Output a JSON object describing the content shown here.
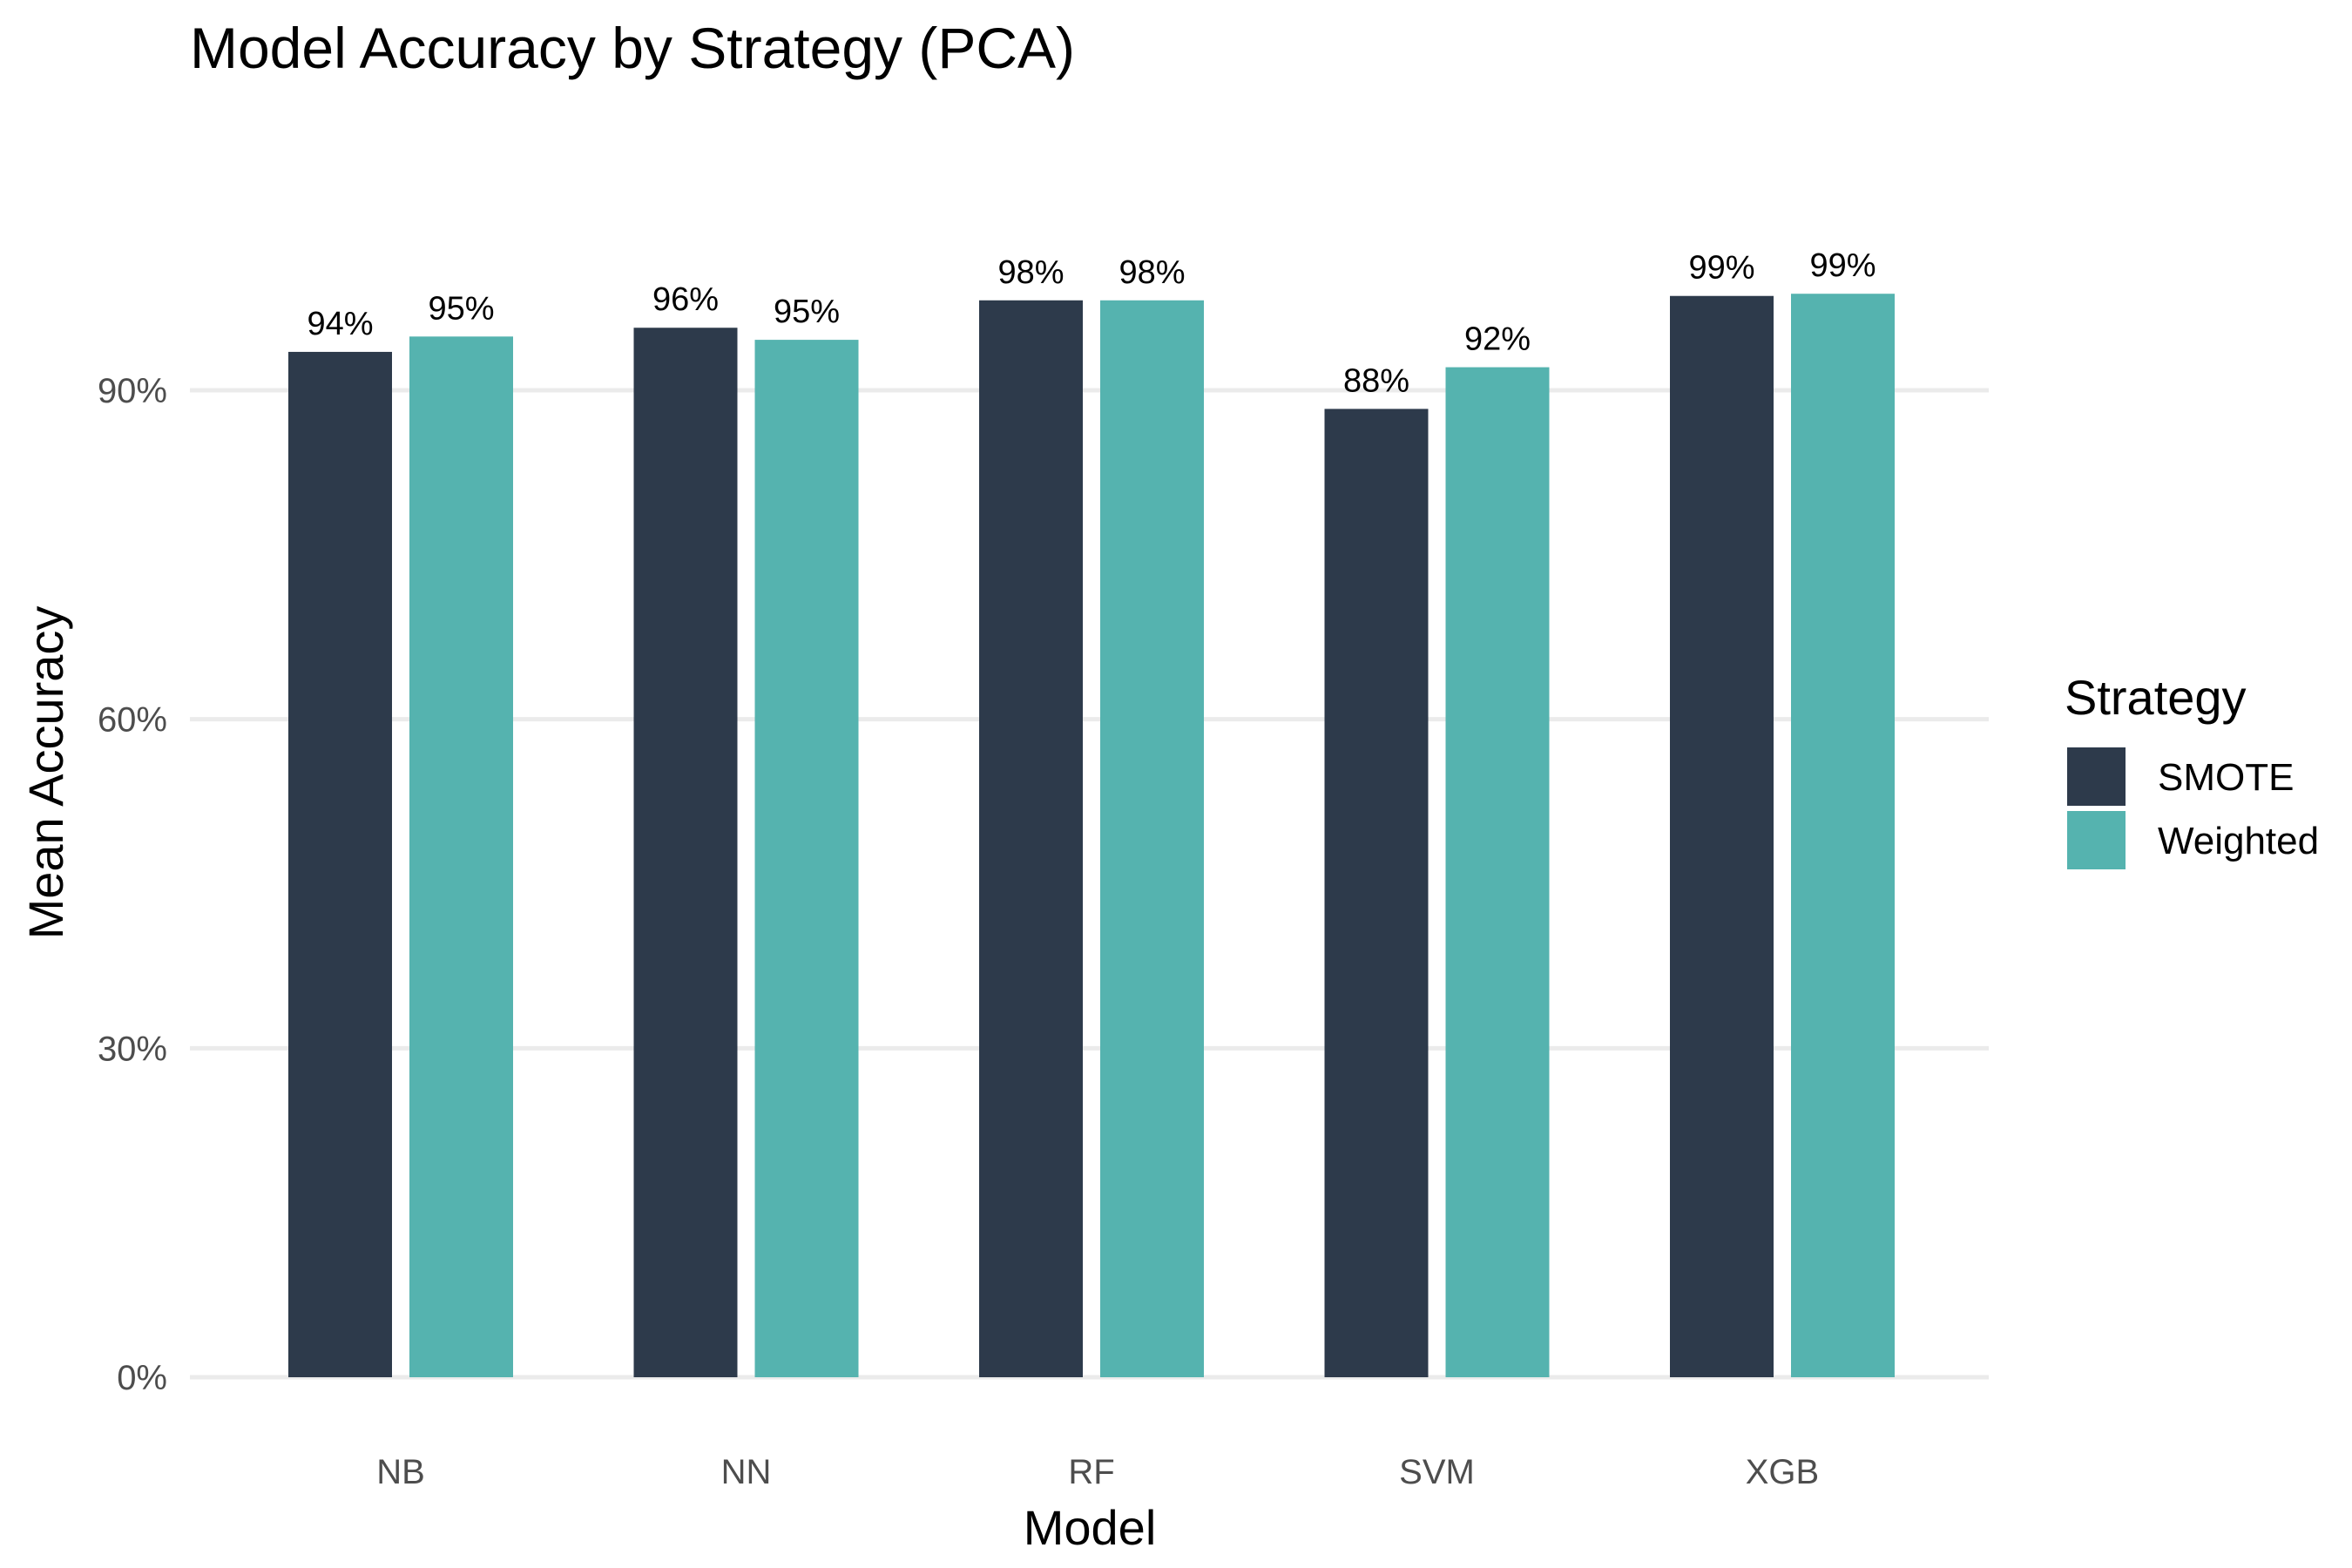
{
  "chart_data": {
    "type": "bar",
    "title": "Model Accuracy by Strategy (PCA)",
    "xlabel": "Model",
    "ylabel": "Mean Accuracy",
    "categories": [
      "NB",
      "NN",
      "RF",
      "SVM",
      "XGB"
    ],
    "series": [
      {
        "name": "SMOTE",
        "color": "#2d3a4b",
        "values": [
          0.935,
          0.957,
          0.982,
          0.883,
          0.986
        ],
        "labels": [
          "94%",
          "96%",
          "98%",
          "88%",
          "99%"
        ]
      },
      {
        "name": "Weighted",
        "color": "#55b3af",
        "values": [
          0.949,
          0.946,
          0.982,
          0.921,
          0.988
        ],
        "labels": [
          "95%",
          "95%",
          "98%",
          "92%",
          "99%"
        ]
      }
    ],
    "yticks": [
      {
        "value": 0,
        "label": "0%"
      },
      {
        "value": 0.3,
        "label": "30%"
      },
      {
        "value": 0.6,
        "label": "60%"
      },
      {
        "value": 0.9,
        "label": "90%"
      }
    ],
    "ylim": [
      0,
      1.04
    ],
    "grid": true,
    "legend": {
      "title": "Strategy",
      "position": "right"
    }
  }
}
